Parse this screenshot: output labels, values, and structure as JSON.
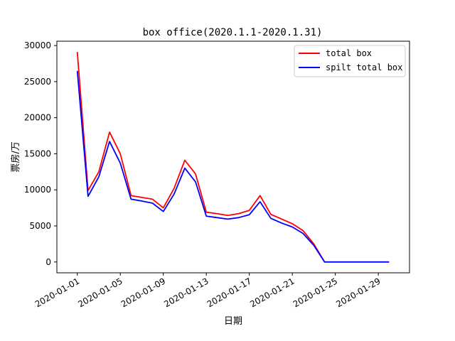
{
  "chart_data": {
    "type": "line",
    "title": "box office(2020.1.1-2020.1.31)",
    "xlabel": "日期",
    "ylabel": "票房/万",
    "x": [
      "2020-01-01",
      "2020-01-02",
      "2020-01-03",
      "2020-01-04",
      "2020-01-05",
      "2020-01-06",
      "2020-01-07",
      "2020-01-08",
      "2020-01-09",
      "2020-01-10",
      "2020-01-11",
      "2020-01-12",
      "2020-01-13",
      "2020-01-14",
      "2020-01-15",
      "2020-01-16",
      "2020-01-17",
      "2020-01-18",
      "2020-01-19",
      "2020-01-20",
      "2020-01-21",
      "2020-01-22",
      "2020-01-23",
      "2020-01-24",
      "2020-01-25",
      "2020-01-26",
      "2020-01-27",
      "2020-01-28",
      "2020-01-29",
      "2020-01-30"
    ],
    "xticks": [
      "2020-01-01",
      "2020-01-05",
      "2020-01-09",
      "2020-01-13",
      "2020-01-17",
      "2020-01-21",
      "2020-01-25",
      "2020-01-29"
    ],
    "yticks": [
      0,
      5000,
      10000,
      15000,
      20000,
      25000,
      30000
    ],
    "ylim": [
      -1500,
      30600
    ],
    "xlim_days": [
      -1.9,
      30.9
    ],
    "legend_position": "upper right",
    "grid": false,
    "series": [
      {
        "name": "total box",
        "color": "#ff0000",
        "values": [
          29100,
          9900,
          12500,
          18000,
          15000,
          9200,
          8950,
          8700,
          7500,
          10200,
          14100,
          12200,
          6900,
          6700,
          6450,
          6700,
          7150,
          9200,
          6600,
          5950,
          5300,
          4350,
          2500,
          0,
          0,
          0,
          0,
          0,
          0,
          0
        ]
      },
      {
        "name": "spilt total box",
        "color": "#0000ff",
        "values": [
          26500,
          9100,
          11800,
          16700,
          13700,
          8700,
          8450,
          8150,
          7000,
          9400,
          13000,
          11100,
          6350,
          6150,
          5950,
          6150,
          6550,
          8350,
          6050,
          5400,
          4850,
          3950,
          2300,
          0,
          0,
          0,
          0,
          0,
          0,
          0
        ]
      }
    ]
  }
}
